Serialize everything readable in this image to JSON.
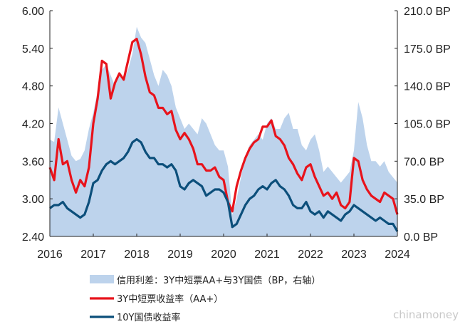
{
  "chart_data": {
    "type": "area+line",
    "x_tick_labels": [
      "2016",
      "2017",
      "2018",
      "2019",
      "2020",
      "2021",
      "2022",
      "2023",
      "2024"
    ],
    "x_range": [
      2016.0,
      2024.0
    ],
    "y_left": {
      "ticks": [
        "2.40",
        "3.00",
        "3.60",
        "4.20",
        "4.80",
        "5.40",
        "6.00"
      ],
      "ylim": [
        2.4,
        6.0
      ]
    },
    "y_right": {
      "ticks": [
        "0.0 BP",
        "35.0 BP",
        "70.0 BP",
        "105.0 BP",
        "140.0 BP",
        "175.0 BP",
        "210.0 BP"
      ],
      "ylim": [
        0,
        210
      ]
    },
    "grid": false,
    "legend_position": "bottom",
    "series": [
      {
        "name": "信用利差：3Y中短票AA+与3Y国债（BP，右轴）",
        "kind": "area",
        "axis": "right",
        "color": "#bdd3ec",
        "x": [
          2016.0,
          2016.1,
          2016.2,
          2016.3,
          2016.4,
          2016.5,
          2016.6,
          2016.7,
          2016.8,
          2016.9,
          2017.0,
          2017.1,
          2017.2,
          2017.3,
          2017.4,
          2017.5,
          2017.6,
          2017.7,
          2017.8,
          2017.9,
          2018.0,
          2018.1,
          2018.2,
          2018.3,
          2018.4,
          2018.5,
          2018.6,
          2018.7,
          2018.8,
          2018.9,
          2019.0,
          2019.1,
          2019.2,
          2019.3,
          2019.4,
          2019.5,
          2019.6,
          2019.7,
          2019.8,
          2019.9,
          2020.0,
          2020.1,
          2020.2,
          2020.3,
          2020.4,
          2020.5,
          2020.6,
          2020.7,
          2020.8,
          2020.9,
          2021.0,
          2021.1,
          2021.2,
          2021.3,
          2021.4,
          2021.5,
          2021.6,
          2021.7,
          2021.8,
          2021.9,
          2022.0,
          2022.1,
          2022.2,
          2022.3,
          2022.4,
          2022.5,
          2022.6,
          2022.7,
          2022.8,
          2022.9,
          2023.0,
          2023.1,
          2023.2,
          2023.3,
          2023.4,
          2023.5,
          2023.6,
          2023.7,
          2023.8,
          2023.9,
          2024.0
        ],
        "values": [
          90,
          88,
          120,
          105,
          90,
          75,
          70,
          72,
          80,
          100,
          115,
          135,
          155,
          160,
          150,
          140,
          150,
          145,
          155,
          170,
          195,
          185,
          180,
          165,
          150,
          140,
          155,
          150,
          140,
          120,
          110,
          100,
          105,
          100,
          95,
          110,
          105,
          95,
          85,
          80,
          80,
          65,
          20,
          35,
          55,
          75,
          85,
          90,
          95,
          90,
          105,
          110,
          100,
          100,
          110,
          115,
          100,
          100,
          85,
          80,
          90,
          95,
          80,
          60,
          65,
          60,
          55,
          50,
          55,
          60,
          80,
          125,
          110,
          85,
          70,
          70,
          65,
          70,
          60,
          55,
          50
        ]
      },
      {
        "name": "3Y中短票收益率（AA+）",
        "kind": "line",
        "axis": "left",
        "color": "#e8131b",
        "x": [
          2016.0,
          2016.1,
          2016.2,
          2016.3,
          2016.4,
          2016.5,
          2016.6,
          2016.7,
          2016.8,
          2016.9,
          2017.0,
          2017.1,
          2017.2,
          2017.3,
          2017.4,
          2017.5,
          2017.6,
          2017.7,
          2017.8,
          2017.9,
          2018.0,
          2018.1,
          2018.2,
          2018.3,
          2018.4,
          2018.5,
          2018.6,
          2018.7,
          2018.8,
          2018.9,
          2019.0,
          2019.1,
          2019.2,
          2019.3,
          2019.4,
          2019.5,
          2019.6,
          2019.7,
          2019.8,
          2019.9,
          2020.0,
          2020.1,
          2020.2,
          2020.3,
          2020.4,
          2020.5,
          2020.6,
          2020.7,
          2020.8,
          2020.9,
          2021.0,
          2021.1,
          2021.2,
          2021.3,
          2021.4,
          2021.5,
          2021.6,
          2021.7,
          2021.8,
          2021.9,
          2022.0,
          2022.1,
          2022.2,
          2022.3,
          2022.4,
          2022.5,
          2022.6,
          2022.7,
          2022.8,
          2022.9,
          2023.0,
          2023.1,
          2023.2,
          2023.3,
          2023.4,
          2023.5,
          2023.6,
          2023.7,
          2023.8,
          2023.9,
          2024.0
        ],
        "values": [
          3.5,
          3.3,
          3.95,
          3.55,
          3.6,
          3.3,
          3.1,
          3.3,
          3.2,
          3.5,
          4.2,
          4.6,
          5.2,
          5.15,
          4.6,
          4.85,
          5.0,
          4.9,
          5.2,
          5.5,
          5.55,
          5.3,
          4.95,
          4.7,
          4.65,
          4.45,
          4.45,
          4.35,
          4.4,
          4.1,
          3.95,
          4.05,
          3.95,
          3.8,
          3.55,
          3.55,
          3.45,
          3.45,
          3.5,
          3.35,
          3.3,
          2.95,
          2.8,
          3.2,
          3.45,
          3.65,
          3.8,
          3.9,
          3.95,
          4.15,
          4.15,
          4.25,
          4.0,
          3.95,
          3.85,
          3.65,
          3.55,
          3.4,
          3.3,
          3.5,
          3.55,
          3.35,
          3.2,
          3.05,
          3.1,
          3.0,
          3.1,
          2.9,
          2.85,
          2.95,
          3.65,
          3.6,
          3.3,
          3.15,
          3.05,
          3.0,
          2.95,
          3.1,
          3.05,
          3.0,
          2.75
        ]
      },
      {
        "name": "10Y国债收益率",
        "kind": "line",
        "axis": "left",
        "color": "#0c4f7b",
        "x": [
          2016.0,
          2016.1,
          2016.2,
          2016.3,
          2016.4,
          2016.5,
          2016.6,
          2016.7,
          2016.8,
          2016.9,
          2017.0,
          2017.1,
          2017.2,
          2017.3,
          2017.4,
          2017.5,
          2017.6,
          2017.7,
          2017.8,
          2017.9,
          2018.0,
          2018.1,
          2018.2,
          2018.3,
          2018.4,
          2018.5,
          2018.6,
          2018.7,
          2018.8,
          2018.9,
          2019.0,
          2019.1,
          2019.2,
          2019.3,
          2019.4,
          2019.5,
          2019.6,
          2019.7,
          2019.8,
          2019.9,
          2020.0,
          2020.1,
          2020.2,
          2020.3,
          2020.4,
          2020.5,
          2020.6,
          2020.7,
          2020.8,
          2020.9,
          2021.0,
          2021.1,
          2021.2,
          2021.3,
          2021.4,
          2021.5,
          2021.6,
          2021.7,
          2021.8,
          2021.9,
          2022.0,
          2022.1,
          2022.2,
          2022.3,
          2022.4,
          2022.5,
          2022.6,
          2022.7,
          2022.8,
          2022.9,
          2023.0,
          2023.1,
          2023.2,
          2023.3,
          2023.4,
          2023.5,
          2023.6,
          2023.7,
          2023.8,
          2023.9,
          2024.0
        ],
        "values": [
          2.85,
          2.9,
          2.9,
          2.95,
          2.85,
          2.8,
          2.75,
          2.7,
          2.75,
          2.95,
          3.25,
          3.3,
          3.45,
          3.55,
          3.6,
          3.55,
          3.6,
          3.65,
          3.75,
          3.9,
          3.95,
          3.9,
          3.75,
          3.65,
          3.65,
          3.55,
          3.55,
          3.5,
          3.55,
          3.45,
          3.2,
          3.15,
          3.25,
          3.3,
          3.25,
          3.2,
          3.05,
          3.1,
          3.15,
          3.15,
          3.1,
          2.95,
          2.55,
          2.6,
          2.75,
          2.9,
          3.0,
          3.05,
          3.15,
          3.2,
          3.15,
          3.25,
          3.3,
          3.2,
          3.15,
          3.05,
          2.9,
          2.85,
          2.85,
          2.95,
          2.8,
          2.75,
          2.8,
          2.7,
          2.8,
          2.75,
          2.7,
          2.65,
          2.75,
          2.8,
          2.9,
          2.85,
          2.8,
          2.75,
          2.7,
          2.65,
          2.7,
          2.65,
          2.6,
          2.6,
          2.48
        ]
      }
    ]
  },
  "watermark": "chinamoney"
}
